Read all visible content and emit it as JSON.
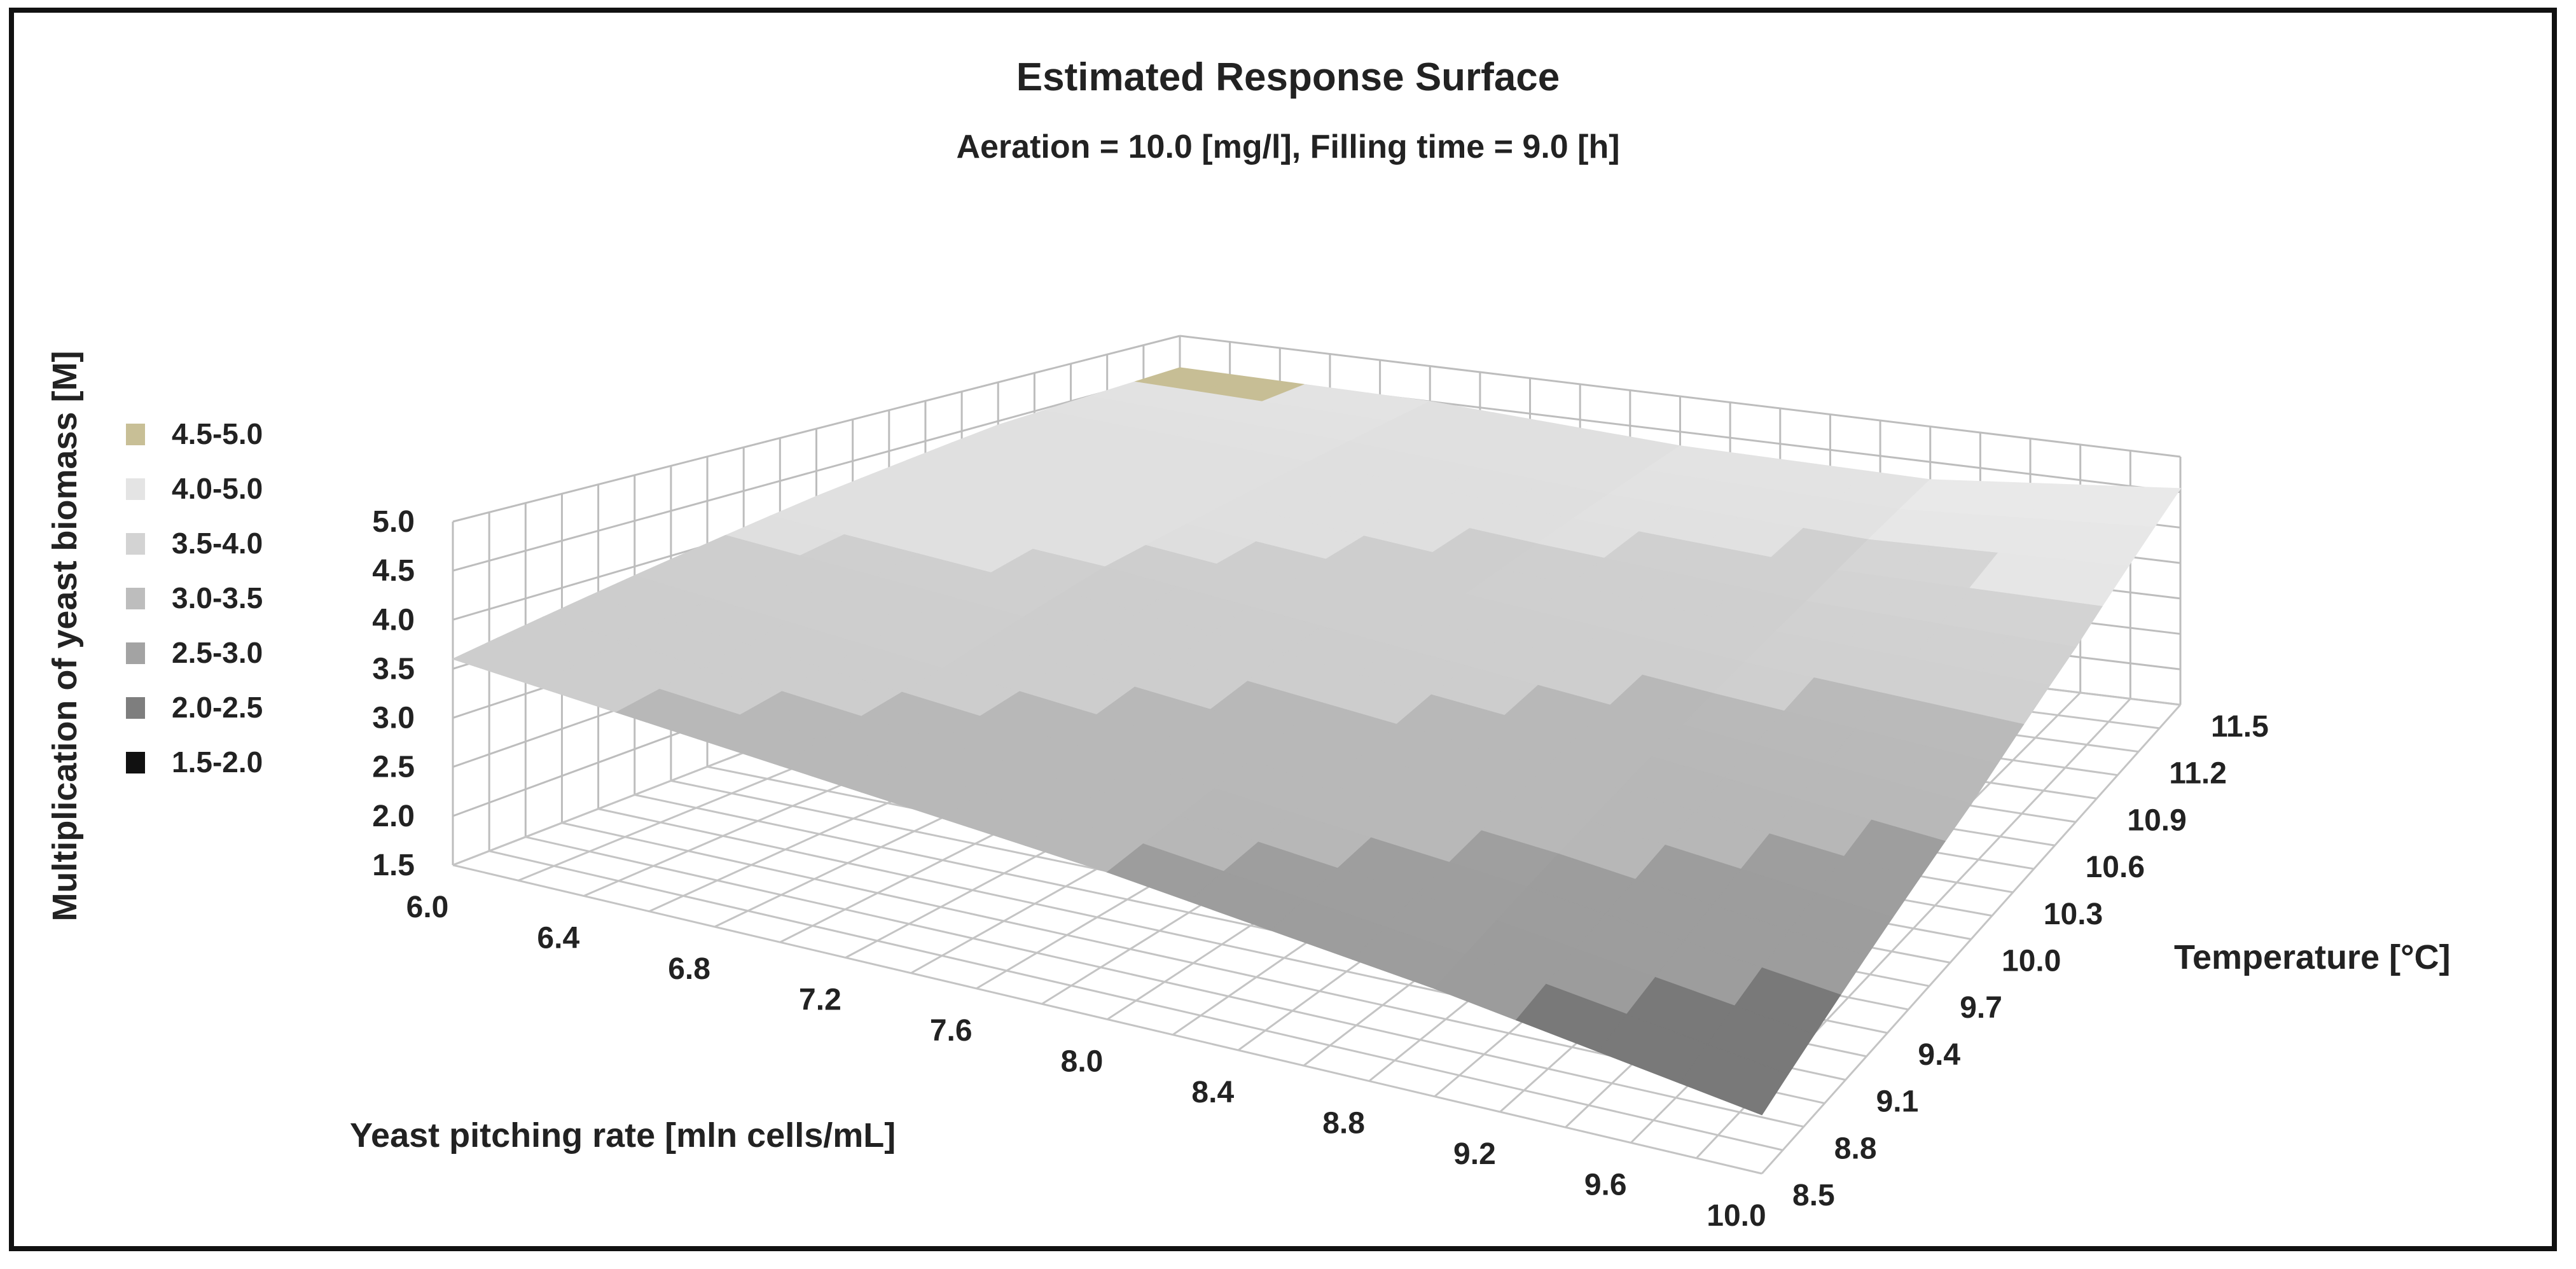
{
  "chart_data": {
    "type": "surface",
    "title": "Estimated Response Surface",
    "subtitle": "Aeration = 10.0 [mg/l], Filling time = 9.0 [h]",
    "xlabel": "Yeast pitching rate [mln cells/mL]",
    "ylabel": "Temperature [°C]",
    "zlabel": "Multiplication of yeast biomass [M]",
    "x_ticks": [
      "6.0",
      "6.4",
      "6.8",
      "7.2",
      "7.6",
      "8.0",
      "8.4",
      "8.8",
      "9.2",
      "9.6",
      "10.0"
    ],
    "y_ticks": [
      "8.5",
      "8.8",
      "9.1",
      "9.4",
      "9.7",
      "10.0",
      "10.3",
      "10.6",
      "10.9",
      "11.2",
      "11.5"
    ],
    "z_ticks": [
      "1.5",
      "2.0",
      "2.5",
      "3.0",
      "3.5",
      "4.0",
      "4.5",
      "5.0"
    ],
    "xlim": [
      6.0,
      10.0
    ],
    "ylim": [
      8.5,
      11.5
    ],
    "zlim": [
      1.5,
      5.0
    ],
    "x": [
      6.0,
      7.0,
      8.0,
      9.0,
      10.0
    ],
    "y": [
      8.5,
      9.25,
      10.0,
      10.75,
      11.5
    ],
    "z": [
      [
        3.6,
        3.3,
        3.0,
        2.6,
        2.1
      ],
      [
        3.9,
        3.6,
        3.3,
        3.0,
        2.6
      ],
      [
        4.2,
        4.0,
        3.7,
        3.4,
        3.1
      ],
      [
        4.45,
        4.25,
        4.0,
        3.8,
        3.75
      ],
      [
        4.55,
        4.5,
        4.3,
        4.25,
        4.55
      ]
    ],
    "legend": [
      {
        "label": "4.5-5.0",
        "color": "#c8bf96"
      },
      {
        "label": "4.0-5.0",
        "color": "#e4e4e4"
      },
      {
        "label": "3.5-4.0",
        "color": "#d3d3d3"
      },
      {
        "label": "3.0-3.5",
        "color": "#bdbdbd"
      },
      {
        "label": "2.5-3.0",
        "color": "#a3a3a3"
      },
      {
        "label": "2.0-2.5",
        "color": "#7e7e7e"
      },
      {
        "label": "1.5-2.0",
        "color": "#111111"
      }
    ]
  }
}
